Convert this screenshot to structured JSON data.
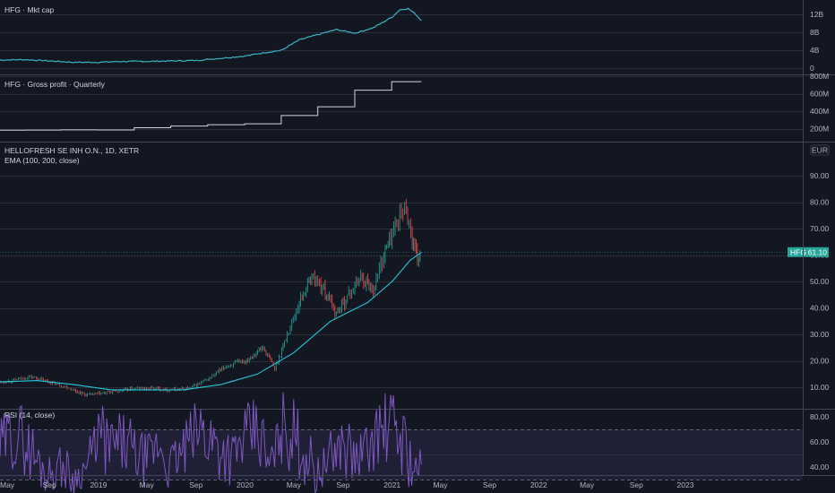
{
  "colors": {
    "background": "#131722",
    "grid": "#2a2e39",
    "separator": "#434651",
    "mktcap_line": "#3bb3c3",
    "gross_profit_line": "#d1d4dc",
    "ema_line": "#26c6da",
    "candle_up": "#26a69a",
    "candle_down": "#ef5350",
    "rsi_line": "#7e57c2",
    "rsi_band": "#7e57c2",
    "price_tag": "#26a69a"
  },
  "header": {
    "mktcap_title": "HFG · Mkt cap",
    "gp_title": "HFG · Gross profit · Quarterly",
    "main_title": "HELLOFRESH SE INH O.N., 1D, XETR",
    "ema_title": "EMA (100, 200, close)",
    "rsi_title": "RSI (14, close)",
    "currency_badge": "EUR",
    "price_tag_symbol": "HFG",
    "price_tag_value": "61.10"
  },
  "chart_data": [
    {
      "id": "mktcap",
      "type": "line",
      "title": "HFG · Mkt cap",
      "y_ticks": [
        "12B",
        "8B",
        "4B",
        "0"
      ],
      "ylim": [
        0,
        14
      ],
      "series": [
        {
          "x": [
            "2018-05-01",
            "2018-07-01",
            "2018-09-01",
            "2018-11-01",
            "2019-01-01",
            "2019-03-01",
            "2019-05-01",
            "2019-07-01",
            "2019-09-01",
            "2019-11-01",
            "2020-01-01",
            "2020-02-15",
            "2020-04-01",
            "2020-05-15",
            "2020-07-01",
            "2020-08-15",
            "2020-10-01",
            "2020-11-15",
            "2021-01-01",
            "2021-01-20",
            "2021-02-10",
            "2021-03-01",
            "2021-03-15"
          ],
          "values": [
            1.8,
            1.9,
            1.6,
            1.3,
            1.3,
            1.5,
            1.5,
            1.6,
            1.7,
            2.2,
            2.7,
            3.4,
            4.0,
            6.3,
            7.5,
            8.6,
            7.8,
            9.0,
            11.4,
            13.0,
            13.3,
            12.0,
            10.6
          ]
        }
      ]
    },
    {
      "id": "gross_profit",
      "type": "line",
      "title": "HFG · Gross profit · Quarterly",
      "y_ticks": [
        "800M",
        "600M",
        "400M",
        "200M"
      ],
      "ylim": [
        120,
        800
      ],
      "series": [
        {
          "x": [
            "2018-05-01",
            "2018-06-30",
            "2018-09-30",
            "2018-12-31",
            "2019-03-31",
            "2019-06-30",
            "2019-09-30",
            "2019-12-31",
            "2020-03-31",
            "2020-06-30",
            "2020-09-30",
            "2020-12-31",
            "2021-03-15"
          ],
          "values": [
            182,
            184,
            186,
            185,
            210,
            230,
            245,
            255,
            350,
            450,
            640,
            737,
            737
          ]
        }
      ]
    },
    {
      "id": "price",
      "type": "line",
      "title": "HELLOFRESH SE INH O.N., 1D, XETR",
      "subtitle": "EMA (100, 200, close)",
      "y_ticks": [
        "90.00",
        "80.00",
        "70.00",
        "60.00",
        "50.00",
        "40.00",
        "30.00",
        "20.00",
        "10.00"
      ],
      "ylim": [
        0,
        100
      ],
      "last_price": 61.1,
      "series": [
        {
          "name": "HFG",
          "x": [
            "2018-05-01",
            "2018-06-01",
            "2018-07-15",
            "2018-09-01",
            "2018-10-15",
            "2018-12-01",
            "2019-01-01",
            "2019-02-15",
            "2019-04-01",
            "2019-05-15",
            "2019-07-01",
            "2019-08-15",
            "2019-10-01",
            "2019-11-15",
            "2020-01-01",
            "2020-02-15",
            "2020-03-15",
            "2020-04-15",
            "2020-05-15",
            "2020-06-15",
            "2020-07-15",
            "2020-08-15",
            "2020-09-15",
            "2020-10-15",
            "2020-11-15",
            "2020-12-15",
            "2021-01-01",
            "2021-01-20",
            "2021-02-05",
            "2021-02-20",
            "2021-03-05",
            "2021-03-15"
          ],
          "values": [
            12,
            12.5,
            14,
            12,
            10,
            7,
            7.5,
            8.5,
            9.5,
            9.5,
            9,
            9.5,
            13,
            18,
            20,
            25,
            17,
            30,
            42,
            52,
            47,
            38,
            45,
            52,
            47,
            62,
            68,
            75,
            78,
            65,
            58,
            61.1
          ]
        },
        {
          "name": "EMA",
          "x": [
            "2018-05-01",
            "2018-08-01",
            "2018-11-01",
            "2019-02-01",
            "2019-05-01",
            "2019-08-01",
            "2019-11-01",
            "2020-02-01",
            "2020-05-01",
            "2020-08-01",
            "2020-11-01",
            "2021-01-01",
            "2021-02-15",
            "2021-03-15"
          ],
          "values": [
            12,
            12.5,
            11,
            9,
            9,
            9,
            11,
            15,
            23,
            35,
            42,
            50,
            58,
            61
          ]
        }
      ]
    },
    {
      "id": "rsi",
      "type": "line",
      "title": "RSI (14, close)",
      "y_ticks": [
        "80.00",
        "60.00",
        "40.00"
      ],
      "ylim": [
        22,
        86
      ],
      "bands": [
        30,
        70
      ],
      "series": [
        {
          "x": [
            "2018-05-01",
            "2018-06-01",
            "2018-07-01",
            "2018-08-01",
            "2018-09-01",
            "2018-10-01",
            "2018-11-01",
            "2018-12-01",
            "2019-01-01",
            "2019-02-01",
            "2019-03-01",
            "2019-04-01",
            "2019-05-01",
            "2019-06-01",
            "2019-07-01",
            "2019-08-01",
            "2019-09-01",
            "2019-10-01",
            "2019-11-01",
            "2019-12-01",
            "2020-01-01",
            "2020-02-01",
            "2020-03-01",
            "2020-04-01",
            "2020-05-01",
            "2020-06-01",
            "2020-07-01",
            "2020-08-01",
            "2020-09-01",
            "2020-10-01",
            "2020-11-01",
            "2020-12-01",
            "2021-01-01",
            "2021-02-01",
            "2021-03-01",
            "2021-03-15"
          ],
          "values": [
            55,
            68,
            60,
            45,
            35,
            42,
            30,
            40,
            65,
            55,
            60,
            50,
            45,
            58,
            42,
            52,
            70,
            65,
            55,
            48,
            62,
            70,
            38,
            72,
            66,
            50,
            35,
            48,
            60,
            45,
            55,
            68,
            72,
            60,
            35,
            42
          ]
        }
      ]
    }
  ],
  "x_axis": {
    "ticks": [
      {
        "label": "May",
        "date": "2018-05-01"
      },
      {
        "label": "Sep",
        "date": "2018-09-01"
      },
      {
        "label": "2019",
        "date": "2019-01-01"
      },
      {
        "label": "May",
        "date": "2019-05-01"
      },
      {
        "label": "Sep",
        "date": "2019-09-01"
      },
      {
        "label": "2020",
        "date": "2020-01-01"
      },
      {
        "label": "May",
        "date": "2020-05-01"
      },
      {
        "label": "Sep",
        "date": "2020-09-01"
      },
      {
        "label": "2021",
        "date": "2021-01-01"
      },
      {
        "label": "May",
        "date": "2021-05-01"
      },
      {
        "label": "Sep",
        "date": "2021-09-01"
      },
      {
        "label": "2022",
        "date": "2022-01-01"
      },
      {
        "label": "May",
        "date": "2022-05-01"
      },
      {
        "label": "Sep",
        "date": "2022-09-01"
      },
      {
        "label": "2023",
        "date": "2023-01-01"
      }
    ]
  }
}
